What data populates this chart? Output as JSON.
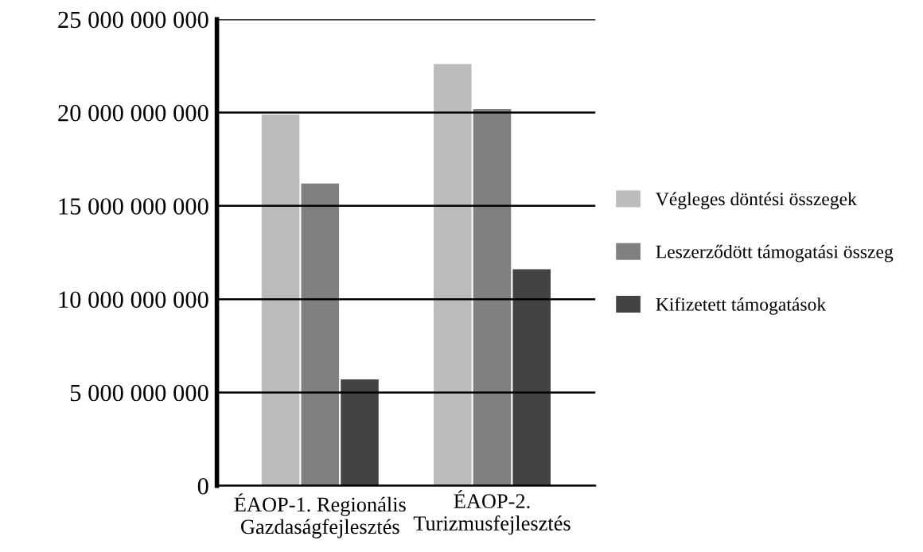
{
  "chart_data": {
    "type": "bar",
    "categories": [
      "ÉAOP-1. Regionális\nGazdaságfejlesztés",
      "ÉAOP-2.\nTurizmusfejlesztés"
    ],
    "series": [
      {
        "name": "Végleges döntési összegek",
        "color": "#bcbcbc",
        "values": [
          19900000000,
          22600000000
        ]
      },
      {
        "name": "Leszerződött támogatási összeg",
        "color": "#808080",
        "values": [
          16200000000,
          20200000000
        ]
      },
      {
        "name": "Kifizetett támogatások",
        "color": "#434343",
        "values": [
          5700000000,
          11600000000
        ]
      }
    ],
    "ylim": [
      0,
      25000000000
    ],
    "yticks": [
      {
        "value": 0,
        "label": "0"
      },
      {
        "value": 5000000000,
        "label": "5 000 000 000"
      },
      {
        "value": 10000000000,
        "label": "10 000 000 000"
      },
      {
        "value": 15000000000,
        "label": "15 000 000 000"
      },
      {
        "value": 20000000000,
        "label": "20 000 000 000"
      },
      {
        "value": 25000000000,
        "label": "25 000 000 000"
      }
    ],
    "grid": "y",
    "legend": "right"
  }
}
